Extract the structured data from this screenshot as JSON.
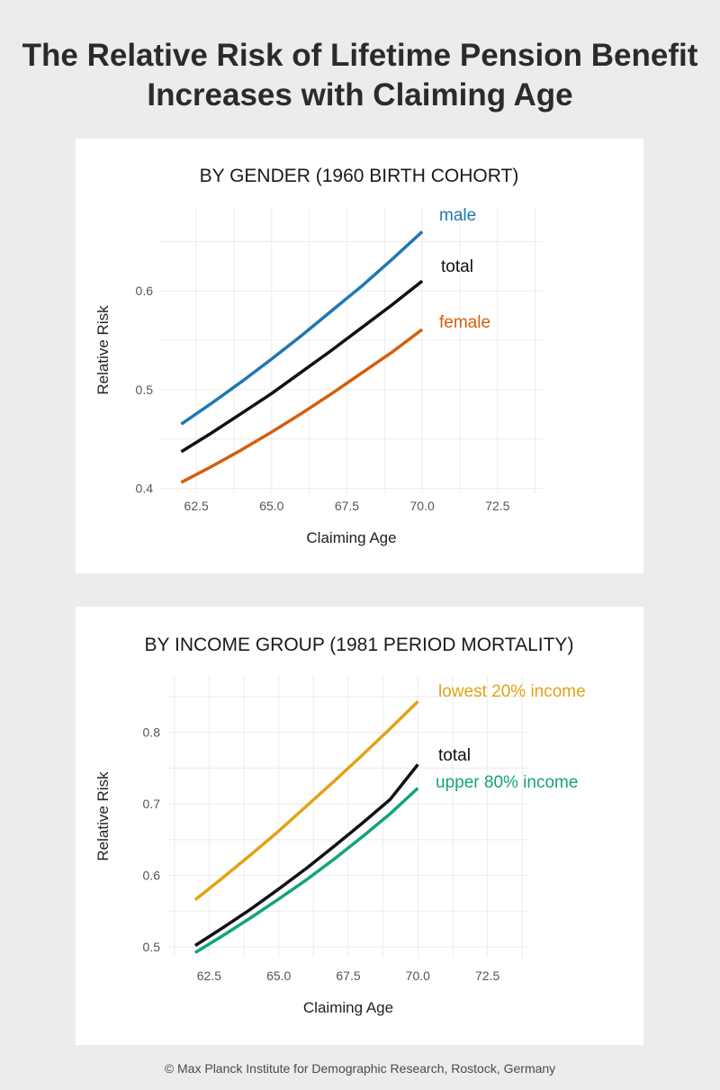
{
  "page": {
    "title_line1": "The Relative Risk of Lifetime Pension Benefit",
    "title_line2": "Increases with Claiming Age",
    "footer": "© Max Planck Institute for Demographic Research, Rostock, Germany"
  },
  "chart_data": [
    {
      "type": "line",
      "title": "BY GENDER (1960 BIRTH COHORT)",
      "xlabel": "Claiming Age",
      "ylabel": "Relative Risk",
      "xlim": [
        61.3,
        74.0
      ],
      "ylim": [
        0.395,
        0.685
      ],
      "xticks": [
        62.5,
        65.0,
        67.5,
        70.0,
        72.5
      ],
      "xtick_labels": [
        "62.5",
        "65.0",
        "67.5",
        "70.0",
        "72.5"
      ],
      "yticks": [
        0.4,
        0.5,
        0.6
      ],
      "ytick_labels": [
        "0.4",
        "0.5",
        "0.6"
      ],
      "grid": true,
      "series": [
        {
          "name": "male",
          "color": "#1f77b4",
          "x": [
            62,
            63,
            64,
            65,
            66,
            67,
            68,
            69,
            70
          ],
          "y": [
            0.465,
            0.486,
            0.508,
            0.531,
            0.555,
            0.58,
            0.605,
            0.632,
            0.66
          ]
        },
        {
          "name": "total",
          "color": "#111111",
          "x": [
            62,
            63,
            64,
            65,
            66,
            67,
            68,
            69,
            70
          ],
          "y": [
            0.437,
            0.456,
            0.476,
            0.496,
            0.518,
            0.54,
            0.563,
            0.586,
            0.61
          ]
        },
        {
          "name": "female",
          "color": "#d35f0b",
          "x": [
            62,
            63,
            64,
            65,
            66,
            67,
            68,
            69,
            70
          ],
          "y": [
            0.406,
            0.422,
            0.439,
            0.457,
            0.476,
            0.496,
            0.517,
            0.538,
            0.561
          ]
        }
      ]
    },
    {
      "type": "line",
      "title": "BY INCOME GROUP (1981 PERIOD MORTALITY)",
      "xlabel": "Claiming Age",
      "ylabel": "Relative Risk",
      "xlim": [
        61.0,
        74.0
      ],
      "ylim": [
        0.485,
        0.88
      ],
      "xticks": [
        62.5,
        65.0,
        67.5,
        70.0,
        72.5
      ],
      "xtick_labels": [
        "62.5",
        "65.0",
        "67.5",
        "70.0",
        "72.5"
      ],
      "yticks": [
        0.5,
        0.6,
        0.7,
        0.8
      ],
      "ytick_labels": [
        "0.5",
        "0.6",
        "0.7",
        "0.8"
      ],
      "grid": true,
      "series": [
        {
          "name": "lowest 20% income",
          "color": "#e3a214",
          "x": [
            62,
            63,
            64,
            65,
            66,
            67,
            68,
            69,
            70
          ],
          "y": [
            0.566,
            0.597,
            0.629,
            0.662,
            0.697,
            0.732,
            0.768,
            0.805,
            0.843
          ]
        },
        {
          "name": "total",
          "color": "#111111",
          "x": [
            62,
            63,
            64,
            65,
            66,
            67,
            68,
            69,
            70
          ],
          "y": [
            0.502,
            0.527,
            0.553,
            0.581,
            0.61,
            0.641,
            0.673,
            0.706,
            0.755
          ]
        },
        {
          "name": "upper 80% income",
          "color": "#12a37f",
          "x": [
            62,
            63,
            64,
            65,
            66,
            67,
            68,
            69,
            70
          ],
          "y": [
            0.492,
            0.516,
            0.541,
            0.567,
            0.594,
            0.623,
            0.654,
            0.686,
            0.722
          ]
        }
      ]
    }
  ]
}
